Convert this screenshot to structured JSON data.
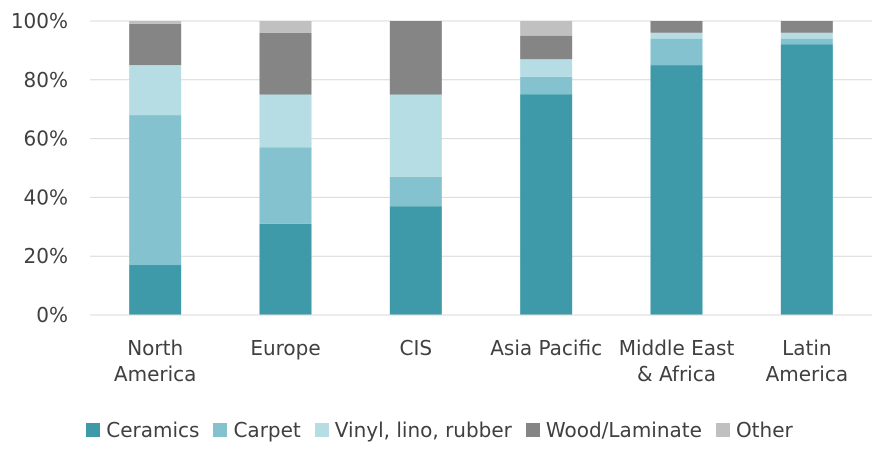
{
  "chart_data": {
    "type": "bar",
    "stacked": true,
    "categories": [
      [
        "North",
        "America"
      ],
      [
        "Europe"
      ],
      [
        "CIS"
      ],
      [
        "Asia Pacific"
      ],
      [
        "Middle East",
        "& Africa"
      ],
      [
        "Latin",
        "America"
      ]
    ],
    "series": [
      {
        "name": "Ceramics",
        "color": "#3e9aa9",
        "values": [
          17,
          31,
          37,
          75,
          85,
          92
        ]
      },
      {
        "name": "Carpet",
        "color": "#84c2cf",
        "values": [
          51,
          26,
          10,
          6,
          9,
          2
        ]
      },
      {
        "name": "Vinyl, lino, rubber",
        "color": "#b5dde3",
        "values": [
          17,
          18,
          28,
          6,
          2,
          2
        ]
      },
      {
        "name": "Wood/Laminate",
        "color": "#858585",
        "values": [
          14,
          21,
          25,
          8,
          4,
          4
        ]
      },
      {
        "name": "Other",
        "color": "#c0c0c0",
        "values": [
          1,
          4,
          0,
          5,
          0,
          0
        ]
      }
    ],
    "ylim": [
      0,
      100
    ],
    "y_ticks": [
      "0%",
      "20%",
      "40%",
      "60%",
      "80%",
      "100%"
    ],
    "y_tick_values": [
      0,
      20,
      40,
      60,
      80,
      100
    ],
    "grid": true,
    "legend_position": "bottom"
  }
}
